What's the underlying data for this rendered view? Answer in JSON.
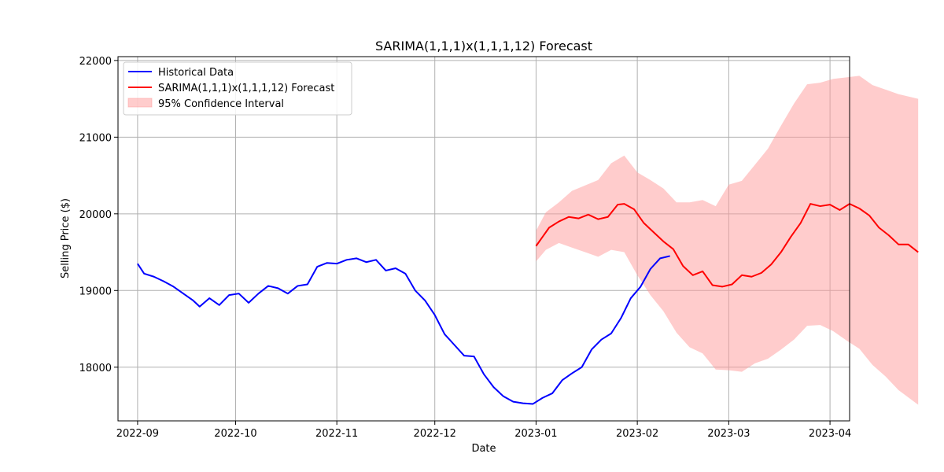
{
  "chart_data": {
    "type": "line",
    "title": "SARIMA(1,1,1)x(1,1,1,12) Forecast",
    "xlabel": "Date",
    "ylabel": "Selling Price ($)",
    "x_range": [
      "2022-08-26",
      "2023-04-07"
    ],
    "ylim": [
      17300,
      22050
    ],
    "x_ticks": [
      "2022-09-01",
      "2022-10-01",
      "2022-11-01",
      "2022-12-01",
      "2023-01-01",
      "2023-02-01",
      "2023-03-01",
      "2023-04-01"
    ],
    "x_tick_labels": [
      "2022-09",
      "2022-10",
      "2022-11",
      "2022-12",
      "2023-01",
      "2023-02",
      "2023-03",
      "2023-04"
    ],
    "y_ticks": [
      18000,
      19000,
      20000,
      21000,
      22000
    ],
    "y_tick_labels": [
      "18000",
      "19000",
      "20000",
      "21000",
      "22000"
    ],
    "grid": true,
    "legend_position": "upper-left",
    "legend": [
      "Historical Data",
      "SARIMA(1,1,1)x(1,1,1,12) Forecast",
      "95% Confidence Interval"
    ],
    "colors": {
      "historical": "#0000ff",
      "forecast": "#ff0000",
      "confidence": "#ff9999",
      "grid": "#b0b0b0"
    },
    "historical": {
      "name": "Historical Data",
      "points": [
        [
          "2022-09-01",
          19350
        ],
        [
          "2022-09-03",
          19220
        ],
        [
          "2022-09-06",
          19180
        ],
        [
          "2022-09-09",
          19120
        ],
        [
          "2022-09-12",
          19050
        ],
        [
          "2022-09-15",
          18960
        ],
        [
          "2022-09-18",
          18870
        ],
        [
          "2022-09-20",
          18790
        ],
        [
          "2022-09-23",
          18900
        ],
        [
          "2022-09-26",
          18810
        ],
        [
          "2022-09-29",
          18940
        ],
        [
          "2022-10-02",
          18960
        ],
        [
          "2022-10-05",
          18840
        ],
        [
          "2022-10-08",
          18960
        ],
        [
          "2022-10-11",
          19060
        ],
        [
          "2022-10-14",
          19030
        ],
        [
          "2022-10-17",
          18960
        ],
        [
          "2022-10-20",
          19060
        ],
        [
          "2022-10-23",
          19080
        ],
        [
          "2022-10-26",
          19310
        ],
        [
          "2022-10-29",
          19360
        ],
        [
          "2022-11-01",
          19350
        ],
        [
          "2022-11-04",
          19400
        ],
        [
          "2022-11-07",
          19420
        ],
        [
          "2022-11-10",
          19370
        ],
        [
          "2022-11-13",
          19400
        ],
        [
          "2022-11-16",
          19260
        ],
        [
          "2022-11-19",
          19290
        ],
        [
          "2022-11-22",
          19220
        ],
        [
          "2022-11-25",
          19000
        ],
        [
          "2022-11-28",
          18870
        ],
        [
          "2022-12-01",
          18680
        ],
        [
          "2022-12-04",
          18430
        ],
        [
          "2022-12-07",
          18290
        ],
        [
          "2022-12-10",
          18150
        ],
        [
          "2022-12-13",
          18140
        ],
        [
          "2022-12-16",
          17910
        ],
        [
          "2022-12-19",
          17740
        ],
        [
          "2022-12-22",
          17620
        ],
        [
          "2022-12-25",
          17550
        ],
        [
          "2022-12-28",
          17530
        ],
        [
          "2022-12-31",
          17520
        ],
        [
          "2023-01-03",
          17600
        ],
        [
          "2023-01-06",
          17660
        ],
        [
          "2023-01-09",
          17830
        ],
        [
          "2023-01-12",
          17920
        ],
        [
          "2023-01-15",
          18000
        ],
        [
          "2023-01-18",
          18230
        ],
        [
          "2023-01-21",
          18360
        ],
        [
          "2023-01-24",
          18440
        ],
        [
          "2023-01-27",
          18640
        ],
        [
          "2023-01-30",
          18900
        ],
        [
          "2023-02-02",
          19050
        ],
        [
          "2023-02-05",
          19280
        ],
        [
          "2023-02-08",
          19420
        ],
        [
          "2023-02-11",
          19450
        ]
      ]
    },
    "forecast": {
      "name": "SARIMA(1,1,1)x(1,1,1,12) Forecast",
      "points": [
        [
          "2023-01-01",
          19580
        ],
        [
          "2023-01-03",
          19700
        ],
        [
          "2023-01-05",
          19820
        ],
        [
          "2023-01-08",
          19900
        ],
        [
          "2023-01-11",
          19960
        ],
        [
          "2023-01-14",
          19940
        ],
        [
          "2023-01-17",
          19990
        ],
        [
          "2023-01-20",
          19930
        ],
        [
          "2023-01-23",
          19960
        ],
        [
          "2023-01-26",
          20120
        ],
        [
          "2023-01-28",
          20130
        ],
        [
          "2023-01-31",
          20060
        ],
        [
          "2023-02-03",
          19880
        ],
        [
          "2023-02-06",
          19760
        ],
        [
          "2023-02-09",
          19640
        ],
        [
          "2023-02-12",
          19540
        ],
        [
          "2023-02-15",
          19320
        ],
        [
          "2023-02-18",
          19200
        ],
        [
          "2023-02-21",
          19250
        ],
        [
          "2023-02-24",
          19070
        ],
        [
          "2023-02-27",
          19050
        ],
        [
          "2023-03-02",
          19080
        ],
        [
          "2023-03-05",
          19200
        ],
        [
          "2023-03-08",
          19180
        ],
        [
          "2023-03-11",
          19230
        ],
        [
          "2023-03-14",
          19340
        ],
        [
          "2023-03-17",
          19500
        ],
        [
          "2023-03-20",
          19700
        ],
        [
          "2023-03-23",
          19880
        ],
        [
          "2023-03-26",
          20130
        ],
        [
          "2023-03-29",
          20100
        ],
        [
          "2023-04-01",
          20120
        ],
        [
          "2023-04-04",
          20050
        ],
        [
          "2023-04-07",
          20130
        ],
        [
          "2023-04-10",
          20070
        ],
        [
          "2023-04-13",
          19980
        ],
        [
          "2023-04-16",
          19820
        ],
        [
          "2023-04-19",
          19720
        ],
        [
          "2023-04-22",
          19600
        ],
        [
          "2023-04-25",
          19600
        ],
        [
          "2023-04-28",
          19500
        ]
      ]
    },
    "confidence_interval": {
      "name": "95% Confidence Interval",
      "upper": [
        [
          "2023-01-01",
          19780
        ],
        [
          "2023-01-04",
          20020
        ],
        [
          "2023-01-08",
          20150
        ],
        [
          "2023-01-12",
          20300
        ],
        [
          "2023-01-16",
          20370
        ],
        [
          "2023-01-20",
          20440
        ],
        [
          "2023-01-24",
          20660
        ],
        [
          "2023-01-28",
          20760
        ],
        [
          "2023-02-01",
          20540
        ],
        [
          "2023-02-05",
          20440
        ],
        [
          "2023-02-09",
          20330
        ],
        [
          "2023-02-13",
          20150
        ],
        [
          "2023-02-17",
          20150
        ],
        [
          "2023-02-21",
          20180
        ],
        [
          "2023-02-25",
          20100
        ],
        [
          "2023-03-01",
          20380
        ],
        [
          "2023-03-05",
          20430
        ],
        [
          "2023-03-09",
          20640
        ],
        [
          "2023-03-13",
          20850
        ],
        [
          "2023-03-17",
          21150
        ],
        [
          "2023-03-21",
          21440
        ],
        [
          "2023-03-25",
          21690
        ],
        [
          "2023-03-29",
          21710
        ],
        [
          "2023-04-02",
          21760
        ],
        [
          "2023-04-06",
          21780
        ],
        [
          "2023-04-10",
          21800
        ],
        [
          "2023-04-14",
          21680
        ],
        [
          "2023-04-18",
          21620
        ],
        [
          "2023-04-22",
          21560
        ],
        [
          "2023-04-28",
          21500
        ]
      ],
      "lower": [
        [
          "2023-01-01",
          19380
        ],
        [
          "2023-01-04",
          19530
        ],
        [
          "2023-01-08",
          19620
        ],
        [
          "2023-01-12",
          19560
        ],
        [
          "2023-01-16",
          19500
        ],
        [
          "2023-01-20",
          19440
        ],
        [
          "2023-01-24",
          19530
        ],
        [
          "2023-01-28",
          19500
        ],
        [
          "2023-02-01",
          19200
        ],
        [
          "2023-02-05",
          18940
        ],
        [
          "2023-02-09",
          18730
        ],
        [
          "2023-02-13",
          18450
        ],
        [
          "2023-02-17",
          18260
        ],
        [
          "2023-02-21",
          18180
        ],
        [
          "2023-02-25",
          17970
        ],
        [
          "2023-03-01",
          17960
        ],
        [
          "2023-03-05",
          17940
        ],
        [
          "2023-03-09",
          18050
        ],
        [
          "2023-03-13",
          18110
        ],
        [
          "2023-03-17",
          18230
        ],
        [
          "2023-03-21",
          18360
        ],
        [
          "2023-03-25",
          18540
        ],
        [
          "2023-03-29",
          18550
        ],
        [
          "2023-04-02",
          18470
        ],
        [
          "2023-04-06",
          18350
        ],
        [
          "2023-04-10",
          18240
        ],
        [
          "2023-04-14",
          18030
        ],
        [
          "2023-04-18",
          17880
        ],
        [
          "2023-04-22",
          17700
        ],
        [
          "2023-04-28",
          17510
        ]
      ]
    }
  }
}
